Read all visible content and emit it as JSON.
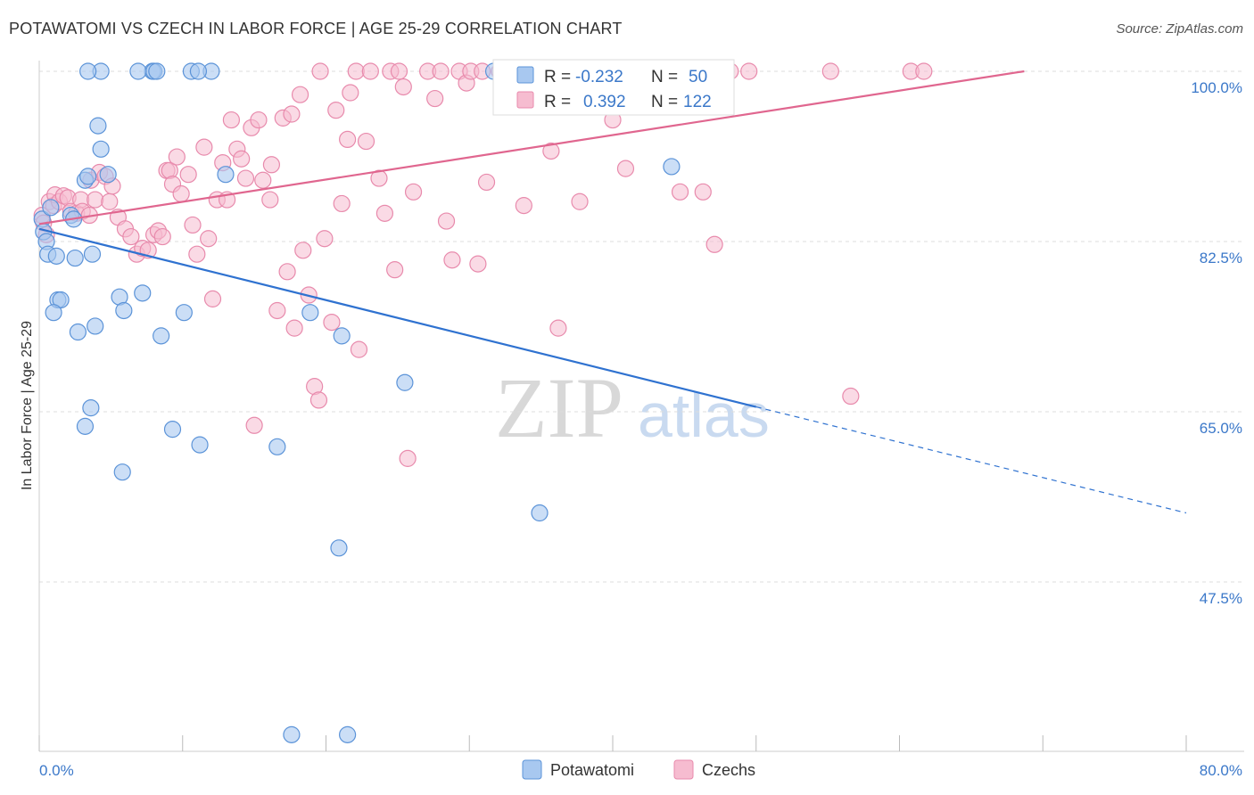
{
  "title": "POTAWATOMI VS CZECH IN LABOR FORCE | AGE 25-29 CORRELATION CHART",
  "source": "Source: ZipAtlas.com",
  "watermark": {
    "zip": "ZIP",
    "atlas": "atlas"
  },
  "colors": {
    "potawatomi_fill": "#a8c8f0",
    "potawatomi_stroke": "#5b93d8",
    "potawatomi_line": "#2f72d0",
    "czech_fill": "#f6bcd0",
    "czech_stroke": "#e88aac",
    "czech_line": "#e0668f",
    "grid": "#dddddd",
    "label": "#3b78c9"
  },
  "legend": {
    "rows": [
      {
        "r_label": "R =",
        "r_value": "-0.232",
        "n_label": "N =",
        "n_value": "50"
      },
      {
        "r_label": "R =",
        "r_value": "0.392",
        "n_label": "N =",
        "n_value": "122"
      }
    ]
  },
  "bottom_legend": [
    "Potawatomi",
    "Czechs"
  ],
  "chart_data": {
    "type": "scatter",
    "title": "POTAWATOMI VS CZECH IN LABOR FORCE | AGE 25-29 CORRELATION CHART",
    "xlabel": "",
    "ylabel": "In Labor Force | Age 25-29",
    "xlim": [
      0,
      80
    ],
    "ylim": [
      30,
      101.5
    ],
    "x_tick_labels": [
      "0.0%",
      "80.0%"
    ],
    "y_ticks": [
      47.5,
      65.0,
      82.5,
      100.0
    ],
    "y_tick_labels": [
      "47.5%",
      "65.0%",
      "82.5%",
      "100.0%"
    ],
    "grid": true,
    "legend_position": "top-center",
    "series": [
      {
        "name": "Potawatomi",
        "r": -0.232,
        "n": 50,
        "trend": {
          "x0": 0,
          "y0": 83.8,
          "x1": 50,
          "y1": 65.5,
          "dashed_to_x": 80,
          "dashed_to_y": 54.6
        },
        "points": [
          [
            0.2,
            84.8
          ],
          [
            0.3,
            83.5
          ],
          [
            0.5,
            82.5
          ],
          [
            0.6,
            81.2
          ],
          [
            0.8,
            86.0
          ],
          [
            1.2,
            81.0
          ],
          [
            1.3,
            76.5
          ],
          [
            1.5,
            76.5
          ],
          [
            1.0,
            75.2
          ],
          [
            2.2,
            85.2
          ],
          [
            2.4,
            84.8
          ],
          [
            2.5,
            80.8
          ],
          [
            2.7,
            73.2
          ],
          [
            3.2,
            88.8
          ],
          [
            3.4,
            89.2
          ],
          [
            3.7,
            81.2
          ],
          [
            3.9,
            73.8
          ],
          [
            4.1,
            94.4
          ],
          [
            4.3,
            92.0
          ],
          [
            4.8,
            89.4
          ],
          [
            5.6,
            76.8
          ],
          [
            5.9,
            75.4
          ],
          [
            7.2,
            77.2
          ],
          [
            7.9,
            100.0
          ],
          [
            8.0,
            100.0
          ],
          [
            8.2,
            100.0
          ],
          [
            8.5,
            72.8
          ],
          [
            9.3,
            63.2
          ],
          [
            10.1,
            75.2
          ],
          [
            11.2,
            61.6
          ],
          [
            12.0,
            100.0
          ],
          [
            13.0,
            89.4
          ],
          [
            6.9,
            100.0
          ],
          [
            4.3,
            100.0
          ],
          [
            10.6,
            100.0
          ],
          [
            11.1,
            100.0
          ],
          [
            3.4,
            100.0
          ],
          [
            3.6,
            65.4
          ],
          [
            3.2,
            63.5
          ],
          [
            5.8,
            58.8
          ],
          [
            18.9,
            75.2
          ],
          [
            21.1,
            72.8
          ],
          [
            25.5,
            68.0
          ],
          [
            20.9,
            51.0
          ],
          [
            34.9,
            54.6
          ],
          [
            17.6,
            31.8
          ],
          [
            21.5,
            31.8
          ],
          [
            44.1,
            90.2
          ],
          [
            31.7,
            100.0
          ],
          [
            16.6,
            61.4
          ]
        ]
      },
      {
        "name": "Czechs",
        "r": 0.392,
        "n": 122,
        "trend": {
          "x0": 0,
          "y0": 84.3,
          "x1": 68.7,
          "y1": 100.0
        },
        "points": [
          [
            0.2,
            85.2
          ],
          [
            0.3,
            84.4
          ],
          [
            0.5,
            83.2
          ],
          [
            0.7,
            86.6
          ],
          [
            1.0,
            86.2
          ],
          [
            1.1,
            87.3
          ],
          [
            1.4,
            86.6
          ],
          [
            1.7,
            87.2
          ],
          [
            2.0,
            87.0
          ],
          [
            2.2,
            85.6
          ],
          [
            2.6,
            85.4
          ],
          [
            2.9,
            86.8
          ],
          [
            3.0,
            85.6
          ],
          [
            3.5,
            85.2
          ],
          [
            3.6,
            88.8
          ],
          [
            3.9,
            86.8
          ],
          [
            4.2,
            89.6
          ],
          [
            4.6,
            89.2
          ],
          [
            4.9,
            86.6
          ],
          [
            5.1,
            88.2
          ],
          [
            5.5,
            85.0
          ],
          [
            6.0,
            83.8
          ],
          [
            6.4,
            83.0
          ],
          [
            6.8,
            81.2
          ],
          [
            7.2,
            81.8
          ],
          [
            7.6,
            81.6
          ],
          [
            8.0,
            83.2
          ],
          [
            8.3,
            83.6
          ],
          [
            8.6,
            83.0
          ],
          [
            8.9,
            89.8
          ],
          [
            9.1,
            89.8
          ],
          [
            9.3,
            88.4
          ],
          [
            9.6,
            91.2
          ],
          [
            9.9,
            87.4
          ],
          [
            10.4,
            89.4
          ],
          [
            10.7,
            84.2
          ],
          [
            11.0,
            81.2
          ],
          [
            11.5,
            92.2
          ],
          [
            11.8,
            82.8
          ],
          [
            12.1,
            76.6
          ],
          [
            12.4,
            86.8
          ],
          [
            12.8,
            90.6
          ],
          [
            13.1,
            86.8
          ],
          [
            13.4,
            95.0
          ],
          [
            13.8,
            92.0
          ],
          [
            14.1,
            91.0
          ],
          [
            14.4,
            89.0
          ],
          [
            14.8,
            94.2
          ],
          [
            15.3,
            95.0
          ],
          [
            15.6,
            88.8
          ],
          [
            16.1,
            86.8
          ],
          [
            16.2,
            90.4
          ],
          [
            16.6,
            75.4
          ],
          [
            17.0,
            95.2
          ],
          [
            17.3,
            79.4
          ],
          [
            17.6,
            95.6
          ],
          [
            17.8,
            73.6
          ],
          [
            18.2,
            97.6
          ],
          [
            18.4,
            81.6
          ],
          [
            18.8,
            77.0
          ],
          [
            19.2,
            67.6
          ],
          [
            19.5,
            66.2
          ],
          [
            19.6,
            100.0
          ],
          [
            19.9,
            82.8
          ],
          [
            20.4,
            74.2
          ],
          [
            20.7,
            96.0
          ],
          [
            21.1,
            86.4
          ],
          [
            21.5,
            93.0
          ],
          [
            21.7,
            97.8
          ],
          [
            22.1,
            100.0
          ],
          [
            22.3,
            71.4
          ],
          [
            22.8,
            92.8
          ],
          [
            23.1,
            100.0
          ],
          [
            23.7,
            89.0
          ],
          [
            24.1,
            85.4
          ],
          [
            24.5,
            100.0
          ],
          [
            24.8,
            79.6
          ],
          [
            25.1,
            100.0
          ],
          [
            25.4,
            98.4
          ],
          [
            25.7,
            60.2
          ],
          [
            26.1,
            87.6
          ],
          [
            27.1,
            100.0
          ],
          [
            27.6,
            97.2
          ],
          [
            28.0,
            100.0
          ],
          [
            28.4,
            84.6
          ],
          [
            28.8,
            80.6
          ],
          [
            29.3,
            100.0
          ],
          [
            29.8,
            98.8
          ],
          [
            30.1,
            100.0
          ],
          [
            30.6,
            80.2
          ],
          [
            30.9,
            100.0
          ],
          [
            31.2,
            88.6
          ],
          [
            32.1,
            100.0
          ],
          [
            33.0,
            100.0
          ],
          [
            33.8,
            86.2
          ],
          [
            34.0,
            100.0
          ],
          [
            35.2,
            100.0
          ],
          [
            35.7,
            91.8
          ],
          [
            36.2,
            73.6
          ],
          [
            36.6,
            100.0
          ],
          [
            37.4,
            100.0
          ],
          [
            37.7,
            86.6
          ],
          [
            38.4,
            100.0
          ],
          [
            39.4,
            100.0
          ],
          [
            40.0,
            95.0
          ],
          [
            40.8,
            100.0
          ],
          [
            40.9,
            90.0
          ],
          [
            41.6,
            100.0
          ],
          [
            42.3,
            100.0
          ],
          [
            43.4,
            100.0
          ],
          [
            44.0,
            100.0
          ],
          [
            44.7,
            87.6
          ],
          [
            45.5,
            100.0
          ],
          [
            46.3,
            87.6
          ],
          [
            47.1,
            82.2
          ],
          [
            48.2,
            100.0
          ],
          [
            49.5,
            100.0
          ],
          [
            55.2,
            100.0
          ],
          [
            56.6,
            66.6
          ],
          [
            60.8,
            100.0
          ],
          [
            61.7,
            100.0
          ],
          [
            15.0,
            63.6
          ]
        ]
      }
    ]
  }
}
